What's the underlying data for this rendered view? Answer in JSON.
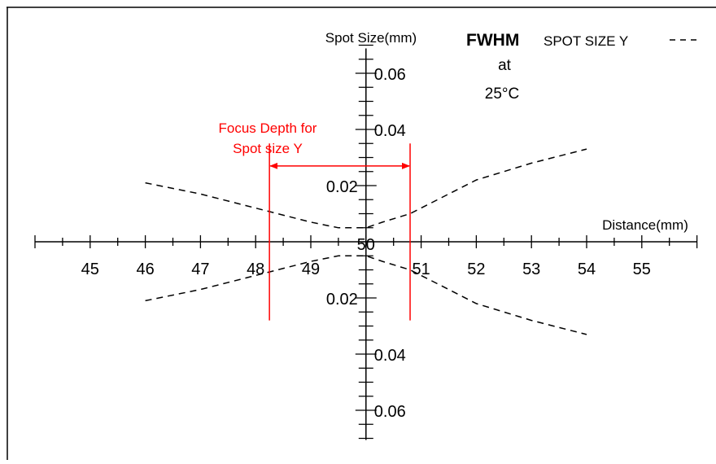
{
  "chart_data": {
    "type": "line",
    "x_axis": {
      "label": "Distance(mm)",
      "range": [
        44,
        56
      ],
      "ticks": [
        45,
        46,
        47,
        48,
        49,
        50,
        51,
        52,
        53,
        54,
        55
      ],
      "tick_labels": [
        "45",
        "46",
        "47",
        "48",
        "49",
        "50",
        "51",
        "52",
        "53",
        "54",
        "55"
      ],
      "minor_step": 0.5
    },
    "y_axis": {
      "label": "Spot Size(mm)",
      "range": [
        -0.07,
        0.07
      ],
      "ticks": [
        0.06,
        0.04,
        0.02,
        -0.02,
        -0.04,
        -0.06
      ],
      "tick_labels": [
        "0.06",
        "0.04",
        "0.02",
        "0.02",
        "0.04",
        "0.06"
      ],
      "minor_step": 0.005,
      "mirrored": true
    },
    "legend": {
      "bold_label": "FWHM",
      "series_label": "SPOT SIZE Y",
      "line_style": "dashed",
      "position": "top-right",
      "note_line1": "at",
      "note_line2": "25°C"
    },
    "series": [
      {
        "name": "SPOT SIZE Y",
        "style": "dashed",
        "color": "#000000",
        "mirrored_about_zero": true,
        "x": [
          46,
          47,
          48,
          49,
          49.5,
          50,
          50.3,
          50.8,
          51.5,
          52,
          53,
          54
        ],
        "y": [
          0.021,
          0.017,
          0.012,
          0.007,
          0.005,
          0.005,
          0.007,
          0.01,
          0.017,
          0.022,
          0.028,
          0.033
        ]
      }
    ],
    "annotation": {
      "text_line1": "Focus Depth for",
      "text_line2": "Spot size Y",
      "color": "#ff0000",
      "x_start": 48.25,
      "x_end": 50.8,
      "arrow_y": 0.027,
      "marker_y_range": [
        -0.028,
        0.035
      ]
    },
    "grid": false
  }
}
